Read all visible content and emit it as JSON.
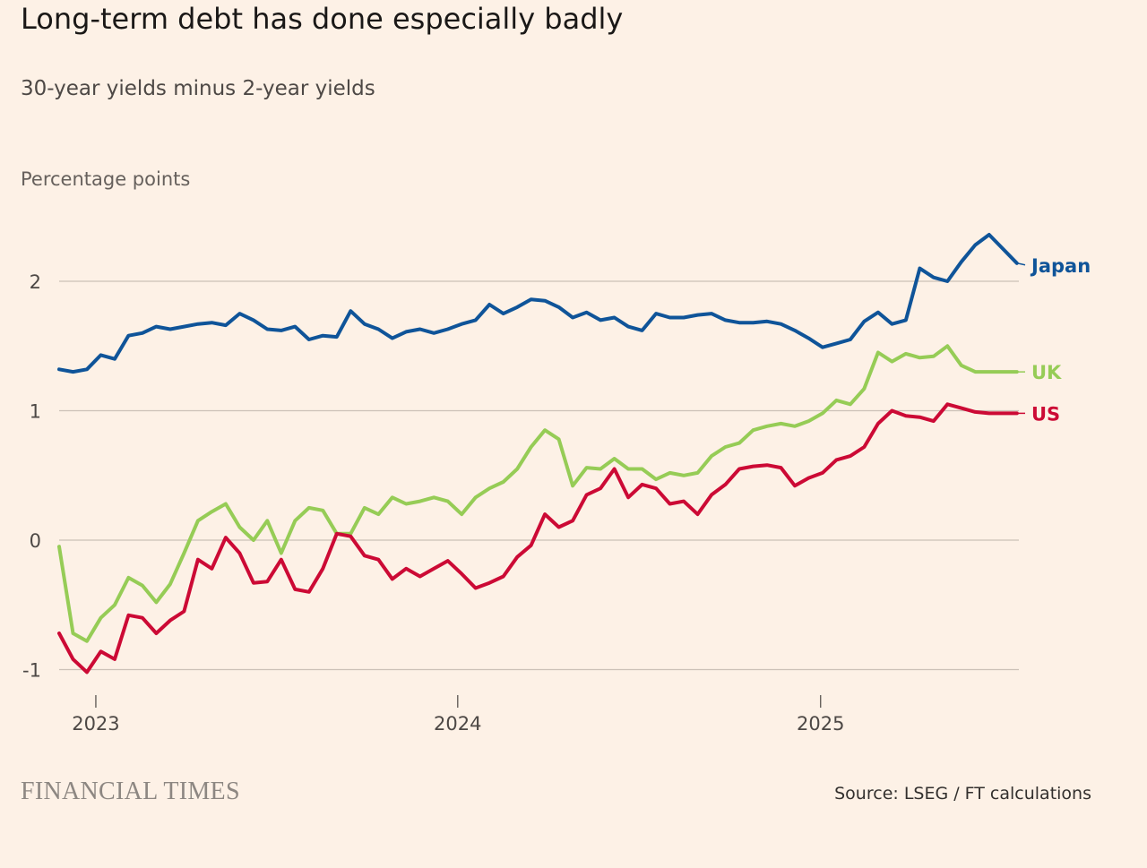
{
  "title": "Long-term debt has done especially badly",
  "subtitle": "30-year yields minus 2-year yields",
  "unit_label": "Percentage points",
  "brand": "FINANCIAL TIMES",
  "source": "Source: LSEG / FT calculations",
  "chart_data": {
    "type": "line",
    "title": "Long-term debt has done especially badly",
    "subtitle": "30-year yields minus 2-year yields",
    "ylabel": "Percentage points",
    "xlim": [
      "2022-11-25",
      "2025-07-20"
    ],
    "ylim": [
      -1.2,
      2.6
    ],
    "yticks": [
      2,
      1,
      0,
      -1
    ],
    "ytick_labels": [
      "2",
      "1",
      "0",
      "-1"
    ],
    "xticks": [
      "2023-01-01",
      "2024-01-01",
      "2025-01-01"
    ],
    "xtick_labels": [
      "2023",
      "2024",
      "2025"
    ],
    "grid": "horizontal",
    "legend": "direct labels at line ends",
    "series": [
      {
        "name": "Japan",
        "color": "#0f5499",
        "x": [
          "2022-11-25",
          "2022-12-09",
          "2022-12-23",
          "2023-01-06",
          "2023-01-20",
          "2023-02-03",
          "2023-02-17",
          "2023-03-03",
          "2023-03-17",
          "2023-03-31",
          "2023-04-14",
          "2023-04-28",
          "2023-05-12",
          "2023-05-26",
          "2023-06-09",
          "2023-06-23",
          "2023-07-07",
          "2023-07-21",
          "2023-08-04",
          "2023-08-18",
          "2023-09-01",
          "2023-09-15",
          "2023-09-29",
          "2023-10-13",
          "2023-10-27",
          "2023-11-10",
          "2023-11-24",
          "2023-12-08",
          "2023-12-22",
          "2024-01-05",
          "2024-01-19",
          "2024-02-02",
          "2024-02-16",
          "2024-03-01",
          "2024-03-15",
          "2024-03-29",
          "2024-04-12",
          "2024-04-26",
          "2024-05-10",
          "2024-05-24",
          "2024-06-07",
          "2024-06-21",
          "2024-07-05",
          "2024-07-19",
          "2024-08-02",
          "2024-08-16",
          "2024-08-30",
          "2024-09-13",
          "2024-09-27",
          "2024-10-11",
          "2024-10-25",
          "2024-11-08",
          "2024-11-22",
          "2024-12-06",
          "2024-12-20",
          "2025-01-03",
          "2025-01-17",
          "2025-01-31",
          "2025-02-14",
          "2025-02-28",
          "2025-03-14",
          "2025-03-28",
          "2025-04-11",
          "2025-04-25",
          "2025-05-09",
          "2025-05-23",
          "2025-06-06",
          "2025-06-20",
          "2025-07-04",
          "2025-07-18"
        ],
        "values": [
          1.32,
          1.3,
          1.32,
          1.43,
          1.4,
          1.58,
          1.6,
          1.65,
          1.63,
          1.65,
          1.67,
          1.68,
          1.66,
          1.75,
          1.7,
          1.63,
          1.62,
          1.65,
          1.55,
          1.58,
          1.57,
          1.77,
          1.67,
          1.63,
          1.56,
          1.61,
          1.63,
          1.6,
          1.63,
          1.67,
          1.7,
          1.82,
          1.75,
          1.8,
          1.86,
          1.85,
          1.8,
          1.72,
          1.76,
          1.7,
          1.72,
          1.65,
          1.62,
          1.75,
          1.72,
          1.72,
          1.74,
          1.75,
          1.7,
          1.68,
          1.68,
          1.69,
          1.67,
          1.62,
          1.56,
          1.49,
          1.52,
          1.55,
          1.69,
          1.76,
          1.67,
          1.7,
          2.1,
          2.03,
          2.0,
          2.15,
          2.28,
          2.36,
          2.25,
          2.14
        ]
      },
      {
        "name": "UK",
        "color": "#96cc56",
        "x": [
          "2022-11-25",
          "2022-12-09",
          "2022-12-23",
          "2023-01-06",
          "2023-01-20",
          "2023-02-03",
          "2023-02-17",
          "2023-03-03",
          "2023-03-17",
          "2023-03-31",
          "2023-04-14",
          "2023-04-28",
          "2023-05-12",
          "2023-05-26",
          "2023-06-09",
          "2023-06-23",
          "2023-07-07",
          "2023-07-21",
          "2023-08-04",
          "2023-08-18",
          "2023-09-01",
          "2023-09-15",
          "2023-09-29",
          "2023-10-13",
          "2023-10-27",
          "2023-11-10",
          "2023-11-24",
          "2023-12-08",
          "2023-12-22",
          "2024-01-05",
          "2024-01-19",
          "2024-02-02",
          "2024-02-16",
          "2024-03-01",
          "2024-03-15",
          "2024-03-29",
          "2024-04-12",
          "2024-04-26",
          "2024-05-10",
          "2024-05-24",
          "2024-06-07",
          "2024-06-21",
          "2024-07-05",
          "2024-07-19",
          "2024-08-02",
          "2024-08-16",
          "2024-08-30",
          "2024-09-13",
          "2024-09-27",
          "2024-10-11",
          "2024-10-25",
          "2024-11-08",
          "2024-11-22",
          "2024-12-06",
          "2024-12-20",
          "2025-01-03",
          "2025-01-17",
          "2025-01-31",
          "2025-02-14",
          "2025-02-28",
          "2025-03-14",
          "2025-03-28",
          "2025-04-11",
          "2025-04-25",
          "2025-05-09",
          "2025-05-23",
          "2025-06-06",
          "2025-06-20",
          "2025-07-04",
          "2025-07-18"
        ],
        "values": [
          -0.05,
          -0.72,
          -0.78,
          -0.6,
          -0.5,
          -0.29,
          -0.35,
          -0.48,
          -0.34,
          -0.1,
          0.15,
          0.22,
          0.28,
          0.1,
          0.0,
          0.15,
          -0.1,
          0.15,
          0.25,
          0.23,
          0.05,
          0.05,
          0.25,
          0.2,
          0.33,
          0.28,
          0.3,
          0.33,
          0.3,
          0.2,
          0.33,
          0.4,
          0.45,
          0.55,
          0.72,
          0.85,
          0.78,
          0.42,
          0.56,
          0.55,
          0.63,
          0.55,
          0.55,
          0.47,
          0.52,
          0.5,
          0.52,
          0.65,
          0.72,
          0.75,
          0.85,
          0.88,
          0.9,
          0.88,
          0.92,
          0.98,
          1.08,
          1.05,
          1.17,
          1.45,
          1.38,
          1.44,
          1.41,
          1.42,
          1.5,
          1.35,
          1.3,
          1.3,
          1.3,
          1.3
        ]
      },
      {
        "name": "US",
        "color": "#cc0a35",
        "x": [
          "2022-11-25",
          "2022-12-09",
          "2022-12-23",
          "2023-01-06",
          "2023-01-20",
          "2023-02-03",
          "2023-02-17",
          "2023-03-03",
          "2023-03-17",
          "2023-03-31",
          "2023-04-14",
          "2023-04-28",
          "2023-05-12",
          "2023-05-26",
          "2023-06-09",
          "2023-06-23",
          "2023-07-07",
          "2023-07-21",
          "2023-08-04",
          "2023-08-18",
          "2023-09-01",
          "2023-09-15",
          "2023-09-29",
          "2023-10-13",
          "2023-10-27",
          "2023-11-10",
          "2023-11-24",
          "2023-12-08",
          "2023-12-22",
          "2024-01-05",
          "2024-01-19",
          "2024-02-02",
          "2024-02-16",
          "2024-03-01",
          "2024-03-15",
          "2024-03-29",
          "2024-04-12",
          "2024-04-26",
          "2024-05-10",
          "2024-05-24",
          "2024-06-07",
          "2024-06-21",
          "2024-07-05",
          "2024-07-19",
          "2024-08-02",
          "2024-08-16",
          "2024-08-30",
          "2024-09-13",
          "2024-09-27",
          "2024-10-11",
          "2024-10-25",
          "2024-11-08",
          "2024-11-22",
          "2024-12-06",
          "2024-12-20",
          "2025-01-03",
          "2025-01-17",
          "2025-01-31",
          "2025-02-14",
          "2025-02-28",
          "2025-03-14",
          "2025-03-28",
          "2025-04-11",
          "2025-04-25",
          "2025-05-09",
          "2025-05-23",
          "2025-06-06",
          "2025-06-20",
          "2025-07-04",
          "2025-07-18"
        ],
        "values": [
          -0.72,
          -0.92,
          -1.02,
          -0.86,
          -0.92,
          -0.58,
          -0.6,
          -0.72,
          -0.62,
          -0.55,
          -0.15,
          -0.22,
          0.02,
          -0.1,
          -0.33,
          -0.32,
          -0.15,
          -0.38,
          -0.4,
          -0.22,
          0.05,
          0.03,
          -0.12,
          -0.15,
          -0.3,
          -0.22,
          -0.28,
          -0.22,
          -0.16,
          -0.26,
          -0.37,
          -0.33,
          -0.28,
          -0.13,
          -0.04,
          0.2,
          0.1,
          0.15,
          0.35,
          0.4,
          0.55,
          0.33,
          0.43,
          0.4,
          0.28,
          0.3,
          0.2,
          0.35,
          0.43,
          0.55,
          0.57,
          0.58,
          0.56,
          0.42,
          0.48,
          0.52,
          0.62,
          0.65,
          0.72,
          0.9,
          1.0,
          0.96,
          0.95,
          0.92,
          1.05,
          1.02,
          0.99,
          0.98,
          0.98,
          0.98
        ]
      }
    ]
  }
}
